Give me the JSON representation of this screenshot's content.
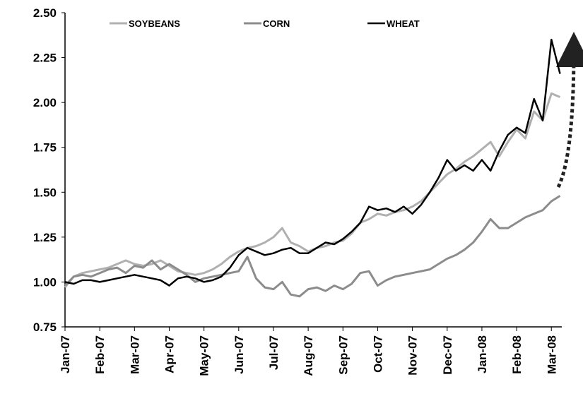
{
  "chart_data": {
    "type": "line",
    "x": [
      0,
      0.25,
      0.5,
      0.75,
      1,
      1.25,
      1.5,
      1.75,
      2,
      2.25,
      2.5,
      2.75,
      3,
      3.25,
      3.5,
      3.75,
      4,
      4.25,
      4.5,
      4.75,
      5,
      5.25,
      5.5,
      5.75,
      6,
      6.25,
      6.5,
      6.75,
      7,
      7.25,
      7.5,
      7.75,
      8,
      8.25,
      8.5,
      8.75,
      9,
      9.25,
      9.5,
      9.75,
      10,
      10.25,
      10.5,
      10.75,
      11,
      11.25,
      11.5,
      11.75,
      12,
      12.25,
      12.5,
      12.75,
      13,
      13.25,
      13.5,
      13.75,
      14,
      14.25
    ],
    "series": [
      {
        "name": "SOYBEANS",
        "color": "#b0b0b0",
        "values": [
          0.97,
          1.03,
          1.05,
          1.06,
          1.07,
          1.08,
          1.1,
          1.12,
          1.1,
          1.09,
          1.1,
          1.12,
          1.09,
          1.06,
          1.05,
          1.04,
          1.05,
          1.07,
          1.1,
          1.14,
          1.17,
          1.19,
          1.2,
          1.22,
          1.25,
          1.3,
          1.22,
          1.2,
          1.17,
          1.19,
          1.2,
          1.22,
          1.23,
          1.27,
          1.33,
          1.35,
          1.38,
          1.37,
          1.39,
          1.4,
          1.42,
          1.45,
          1.5,
          1.55,
          1.6,
          1.63,
          1.67,
          1.7,
          1.74,
          1.78,
          1.7,
          1.78,
          1.85,
          1.8,
          1.95,
          1.9,
          2.05,
          2.03
        ]
      },
      {
        "name": "CORN",
        "color": "#8c8c8c",
        "values": [
          0.98,
          1.03,
          1.04,
          1.03,
          1.05,
          1.07,
          1.08,
          1.05,
          1.09,
          1.08,
          1.12,
          1.07,
          1.1,
          1.07,
          1.04,
          1.0,
          1.02,
          1.03,
          1.04,
          1.05,
          1.06,
          1.14,
          1.02,
          0.97,
          0.96,
          1.0,
          0.93,
          0.92,
          0.96,
          0.97,
          0.95,
          0.98,
          0.96,
          0.99,
          1.05,
          1.06,
          0.98,
          1.01,
          1.03,
          1.04,
          1.05,
          1.06,
          1.07,
          1.1,
          1.13,
          1.15,
          1.18,
          1.22,
          1.28,
          1.35,
          1.3,
          1.3,
          1.33,
          1.36,
          1.38,
          1.4,
          1.45,
          1.48
        ]
      },
      {
        "name": "WHEAT",
        "color": "#000000",
        "values": [
          1.0,
          0.99,
          1.01,
          1.01,
          1.0,
          1.01,
          1.02,
          1.03,
          1.04,
          1.03,
          1.02,
          1.01,
          0.98,
          1.02,
          1.03,
          1.02,
          1.0,
          1.01,
          1.03,
          1.08,
          1.15,
          1.19,
          1.17,
          1.15,
          1.16,
          1.18,
          1.19,
          1.16,
          1.16,
          1.19,
          1.22,
          1.21,
          1.24,
          1.28,
          1.33,
          1.42,
          1.4,
          1.41,
          1.39,
          1.42,
          1.38,
          1.43,
          1.5,
          1.58,
          1.68,
          1.62,
          1.65,
          1.62,
          1.68,
          1.62,
          1.73,
          1.82,
          1.86,
          1.83,
          2.02,
          1.9,
          2.35,
          2.16
        ]
      }
    ],
    "xlim": [
      0,
      14.3
    ],
    "xticks": [
      {
        "value": 0,
        "label": "Jan-07"
      },
      {
        "value": 1,
        "label": "Feb-07"
      },
      {
        "value": 2,
        "label": "Mar-07"
      },
      {
        "value": 3,
        "label": "Apr-07"
      },
      {
        "value": 4,
        "label": "May-07"
      },
      {
        "value": 5,
        "label": "Jun-07"
      },
      {
        "value": 6,
        "label": "Jul-07"
      },
      {
        "value": 7,
        "label": "Aug-07"
      },
      {
        "value": 8,
        "label": "Sep-07"
      },
      {
        "value": 9,
        "label": "Oct-07"
      },
      {
        "value": 10,
        "label": "Nov-07"
      },
      {
        "value": 11,
        "label": "Dec-07"
      },
      {
        "value": 12,
        "label": "Jan-08"
      },
      {
        "value": 13,
        "label": "Feb-08"
      },
      {
        "value": 14,
        "label": "Mar-08"
      }
    ],
    "ylim": [
      0.75,
      2.5
    ],
    "yticks": [
      {
        "value": 0.75,
        "label": "0.75"
      },
      {
        "value": 1,
        "label": "1.00"
      },
      {
        "value": 1.25,
        "label": "1.25"
      },
      {
        "value": 1.5,
        "label": "1.50"
      },
      {
        "value": 1.75,
        "label": "1.75"
      },
      {
        "value": 2,
        "label": "2.00"
      },
      {
        "value": 2.25,
        "label": "2.25"
      },
      {
        "value": 2.5,
        "label": "2.50"
      }
    ],
    "legend": "top"
  }
}
